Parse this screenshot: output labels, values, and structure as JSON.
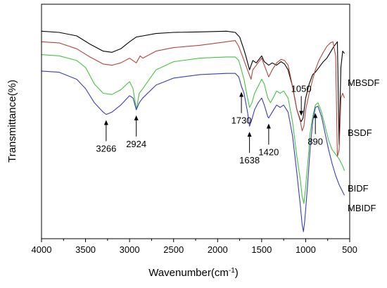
{
  "chart_data": {
    "type": "line",
    "title": "",
    "xlabel": "Wavenumber(cm",
    "xlabel_superscript": "-1",
    "xlabel_suffix": ")",
    "ylabel": "Transmittance(%)",
    "xlim": [
      4000,
      500
    ],
    "x_reversed": true,
    "x_ticks": [
      4000,
      3500,
      3000,
      2500,
      2000,
      1500,
      1000,
      500
    ],
    "y_ticks_shown": false,
    "grid": false,
    "legend": "inline labels at right end of each curve",
    "series": [
      {
        "name": "MBSDF",
        "color": "#000000",
        "points": [
          [
            4000,
            88.5
          ],
          [
            3800,
            88.0
          ],
          [
            3600,
            86.5
          ],
          [
            3450,
            83.0
          ],
          [
            3300,
            80.0
          ],
          [
            3200,
            79.5
          ],
          [
            3100,
            81.0
          ],
          [
            3000,
            84.0
          ],
          [
            2924,
            86.0
          ],
          [
            2850,
            86.5
          ],
          [
            2700,
            87.5
          ],
          [
            2500,
            88.0
          ],
          [
            2200,
            88.2
          ],
          [
            1900,
            88.5
          ],
          [
            1800,
            88.0
          ],
          [
            1750,
            86.0
          ],
          [
            1700,
            80.5
          ],
          [
            1680,
            78.0
          ],
          [
            1638,
            72.0
          ],
          [
            1600,
            76.0
          ],
          [
            1560,
            75.0
          ],
          [
            1500,
            78.0
          ],
          [
            1470,
            75.5
          ],
          [
            1420,
            74.0
          ],
          [
            1380,
            75.0
          ],
          [
            1330,
            74.0
          ],
          [
            1280,
            75.5
          ],
          [
            1240,
            74.5
          ],
          [
            1200,
            72.0
          ],
          [
            1150,
            65.0
          ],
          [
            1100,
            55.0
          ],
          [
            1060,
            50.5
          ],
          [
            1050,
            50.0
          ],
          [
            1030,
            51.5
          ],
          [
            1000,
            60.0
          ],
          [
            960,
            66.0
          ],
          [
            920,
            70.0
          ],
          [
            890,
            71.0
          ],
          [
            850,
            73.0
          ],
          [
            800,
            75.5
          ],
          [
            760,
            77.0
          ],
          [
            720,
            79.5
          ],
          [
            680,
            82.0
          ],
          [
            640,
            84.0
          ],
          [
            620,
            40.0
          ],
          [
            600,
            73.0
          ],
          [
            580,
            80.0
          ],
          [
            560,
            79.0
          ]
        ]
      },
      {
        "name": "BSDF",
        "color": "#b5453a",
        "points": [
          [
            4000,
            84.0
          ],
          [
            3800,
            83.5
          ],
          [
            3600,
            81.0
          ],
          [
            3450,
            77.5
          ],
          [
            3300,
            74.5
          ],
          [
            3200,
            74.0
          ],
          [
            3100,
            75.0
          ],
          [
            3000,
            77.0
          ],
          [
            2924,
            75.0
          ],
          [
            2880,
            78.0
          ],
          [
            2850,
            77.0
          ],
          [
            2700,
            80.0
          ],
          [
            2500,
            81.5
          ],
          [
            2200,
            82.5
          ],
          [
            1900,
            84.0
          ],
          [
            1800,
            84.5
          ],
          [
            1760,
            82.0
          ],
          [
            1730,
            79.0
          ],
          [
            1700,
            76.0
          ],
          [
            1640,
            70.0
          ],
          [
            1620,
            68.0
          ],
          [
            1600,
            72.0
          ],
          [
            1560,
            74.0
          ],
          [
            1500,
            77.0
          ],
          [
            1470,
            74.0
          ],
          [
            1420,
            69.0
          ],
          [
            1380,
            72.0
          ],
          [
            1330,
            75.0
          ],
          [
            1280,
            76.5
          ],
          [
            1240,
            76.0
          ],
          [
            1200,
            74.0
          ],
          [
            1150,
            65.0
          ],
          [
            1100,
            55.0
          ],
          [
            1060,
            50.0
          ],
          [
            1040,
            46.0
          ],
          [
            1020,
            48.0
          ],
          [
            1000,
            55.0
          ],
          [
            960,
            62.0
          ],
          [
            920,
            68.0
          ],
          [
            890,
            72.0
          ],
          [
            850,
            76.0
          ],
          [
            800,
            79.5
          ],
          [
            760,
            82.0
          ],
          [
            720,
            83.5
          ],
          [
            690,
            84.0
          ],
          [
            660,
            78.0
          ],
          [
            640,
            35.0
          ],
          [
            620,
            38.0
          ],
          [
            600,
            60.0
          ],
          [
            580,
            62.0
          ],
          [
            560,
            60.0
          ]
        ]
      },
      {
        "name": "BIDF",
        "color": "#42c441",
        "points": [
          [
            4000,
            78.5
          ],
          [
            3800,
            78.0
          ],
          [
            3600,
            76.0
          ],
          [
            3500,
            73.0
          ],
          [
            3400,
            66.0
          ],
          [
            3300,
            62.0
          ],
          [
            3200,
            61.5
          ],
          [
            3100,
            63.5
          ],
          [
            3000,
            67.0
          ],
          [
            2960,
            64.0
          ],
          [
            2924,
            55.0
          ],
          [
            2890,
            62.0
          ],
          [
            2850,
            64.0
          ],
          [
            2700,
            72.0
          ],
          [
            2500,
            75.5
          ],
          [
            2200,
            77.0
          ],
          [
            1900,
            77.5
          ],
          [
            1800,
            77.5
          ],
          [
            1760,
            76.0
          ],
          [
            1730,
            72.0
          ],
          [
            1700,
            68.0
          ],
          [
            1660,
            60.0
          ],
          [
            1638,
            56.0
          ],
          [
            1610,
            58.0
          ],
          [
            1580,
            62.0
          ],
          [
            1540,
            65.0
          ],
          [
            1500,
            68.0
          ],
          [
            1470,
            66.0
          ],
          [
            1430,
            60.0
          ],
          [
            1400,
            58.0
          ],
          [
            1370,
            60.0
          ],
          [
            1330,
            63.0
          ],
          [
            1290,
            62.0
          ],
          [
            1250,
            63.0
          ],
          [
            1200,
            60.0
          ],
          [
            1150,
            50.0
          ],
          [
            1100,
            35.0
          ],
          [
            1060,
            25.0
          ],
          [
            1040,
            18.0
          ],
          [
            1020,
            15.0
          ],
          [
            1000,
            22.0
          ],
          [
            970,
            35.0
          ],
          [
            950,
            45.0
          ],
          [
            920,
            52.0
          ],
          [
            890,
            57.0
          ],
          [
            860,
            58.0
          ],
          [
            820,
            54.0
          ],
          [
            780,
            48.0
          ],
          [
            740,
            42.0
          ],
          [
            700,
            38.0
          ],
          [
            660,
            36.0
          ],
          [
            620,
            34.0
          ],
          [
            580,
            31.0
          ],
          [
            560,
            29.0
          ]
        ]
      },
      {
        "name": "MBIDF",
        "color": "#3b3bbf",
        "points": [
          [
            4000,
            71.5
          ],
          [
            3800,
            71.0
          ],
          [
            3600,
            68.0
          ],
          [
            3500,
            64.0
          ],
          [
            3400,
            58.0
          ],
          [
            3300,
            54.0
          ],
          [
            3266,
            53.0
          ],
          [
            3200,
            54.0
          ],
          [
            3100,
            57.0
          ],
          [
            3000,
            61.0
          ],
          [
            2960,
            60.0
          ],
          [
            2924,
            55.0
          ],
          [
            2890,
            58.0
          ],
          [
            2850,
            60.0
          ],
          [
            2700,
            65.5
          ],
          [
            2500,
            68.5
          ],
          [
            2200,
            70.0
          ],
          [
            1900,
            70.5
          ],
          [
            1800,
            70.5
          ],
          [
            1760,
            69.0
          ],
          [
            1730,
            65.0
          ],
          [
            1700,
            62.0
          ],
          [
            1660,
            54.0
          ],
          [
            1638,
            48.0
          ],
          [
            1610,
            51.0
          ],
          [
            1580,
            55.0
          ],
          [
            1540,
            58.0
          ],
          [
            1500,
            60.0
          ],
          [
            1470,
            57.0
          ],
          [
            1430,
            52.0
          ],
          [
            1420,
            51.5
          ],
          [
            1380,
            54.0
          ],
          [
            1330,
            57.0
          ],
          [
            1290,
            56.0
          ],
          [
            1250,
            57.0
          ],
          [
            1200,
            54.0
          ],
          [
            1150,
            44.0
          ],
          [
            1100,
            28.0
          ],
          [
            1060,
            14.0
          ],
          [
            1040,
            6.0
          ],
          [
            1025,
            3.0
          ],
          [
            1010,
            8.0
          ],
          [
            980,
            22.0
          ],
          [
            950,
            38.0
          ],
          [
            920,
            50.0
          ],
          [
            890,
            56.0
          ],
          [
            860,
            56.5
          ],
          [
            820,
            52.0
          ],
          [
            780,
            45.0
          ],
          [
            740,
            38.0
          ],
          [
            700,
            32.0
          ],
          [
            660,
            27.0
          ],
          [
            620,
            23.0
          ],
          [
            580,
            20.0
          ],
          [
            560,
            18.5
          ]
        ]
      }
    ],
    "annotations": [
      {
        "label": "3266",
        "x": 3266,
        "arrow": "up"
      },
      {
        "label": "2924",
        "x": 2924,
        "arrow": "up"
      },
      {
        "label": "1730",
        "x": 1730,
        "arrow": "up"
      },
      {
        "label": "1638",
        "x": 1638,
        "arrow": "up"
      },
      {
        "label": "1420",
        "x": 1420,
        "arrow": "up"
      },
      {
        "label": "890",
        "x": 890,
        "arrow": "up"
      },
      {
        "label": "1050",
        "x": 1050,
        "arrow": "down"
      }
    ]
  }
}
